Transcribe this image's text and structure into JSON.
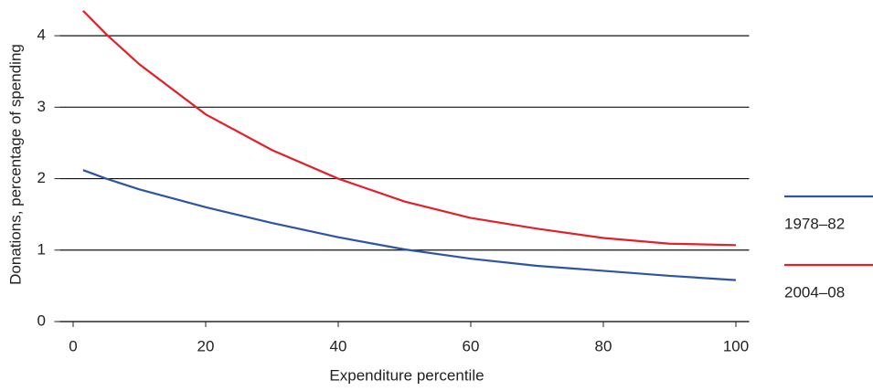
{
  "chart_data": {
    "type": "line",
    "x_label": "Expenditure percentile",
    "y_label": "Donations, percentage of spending",
    "x": [
      1.5,
      5,
      10,
      20,
      30,
      40,
      50,
      60,
      70,
      80,
      90,
      100
    ],
    "series": [
      {
        "name": "1978–82",
        "color": "#2e55a4",
        "values": [
          2.12,
          2.0,
          1.85,
          1.6,
          1.38,
          1.18,
          1.01,
          0.88,
          0.78,
          0.71,
          0.64,
          0.58
        ]
      },
      {
        "name": "2004–08",
        "color": "#e3202a",
        "values": [
          4.35,
          4.02,
          3.6,
          2.9,
          2.4,
          2.0,
          1.68,
          1.45,
          1.3,
          1.17,
          1.09,
          1.07
        ]
      }
    ],
    "xlim": [
      -2,
      102
    ],
    "xticks": [
      0,
      20,
      40,
      60,
      80,
      100
    ],
    "ylim": [
      0,
      4.5
    ],
    "yticks": [
      0,
      1,
      2,
      3,
      4
    ],
    "grid": true,
    "legend": "right"
  }
}
